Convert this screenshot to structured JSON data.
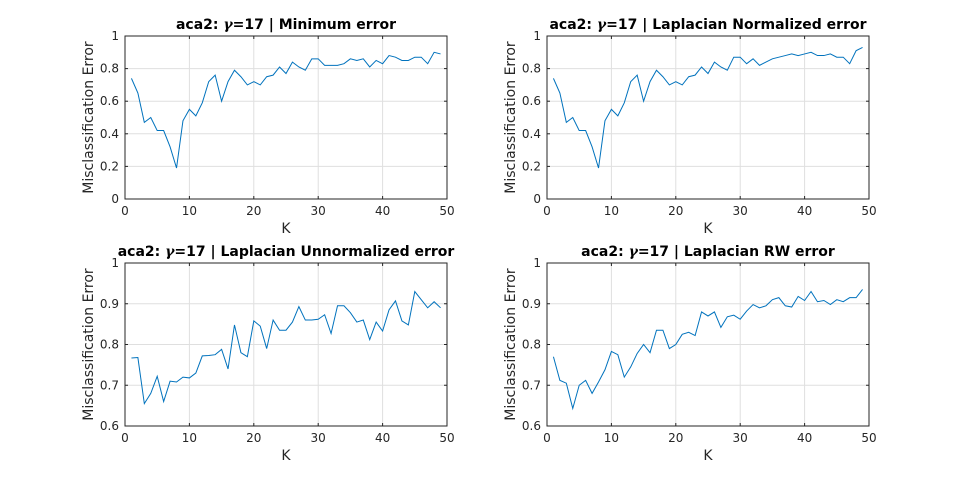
{
  "chart_data": [
    {
      "type": "line",
      "title_prefix": "aca2: ",
      "title_symbol": "γ",
      "title_suffix": "=17 | Minimum error",
      "xlabel": "K",
      "ylabel": "Misclassification Error",
      "xlim": [
        0,
        50
      ],
      "ylim": [
        0,
        1
      ],
      "xticks": [
        0,
        10,
        20,
        30,
        40,
        50
      ],
      "yticks": [
        0,
        0.2,
        0.4,
        0.6,
        0.8,
        1
      ],
      "ytick_labels": [
        "0",
        "0.2",
        "0.4",
        "0.6",
        "0.8",
        "1"
      ],
      "grid": true,
      "series": [
        {
          "color": "#0072bd",
          "x": [
            1,
            2,
            3,
            4,
            5,
            6,
            7,
            8,
            9,
            10,
            11,
            12,
            13,
            14,
            15,
            16,
            17,
            18,
            19,
            20,
            21,
            22,
            23,
            24,
            25,
            26,
            27,
            28,
            29,
            30,
            31,
            32,
            33,
            34,
            35,
            36,
            37,
            38,
            39,
            40,
            41,
            42,
            43,
            44,
            45,
            46,
            47,
            48,
            49
          ],
          "y": [
            0.74,
            0.65,
            0.47,
            0.5,
            0.42,
            0.42,
            0.32,
            0.19,
            0.48,
            0.55,
            0.51,
            0.59,
            0.72,
            0.76,
            0.6,
            0.72,
            0.79,
            0.75,
            0.7,
            0.72,
            0.7,
            0.75,
            0.76,
            0.81,
            0.77,
            0.84,
            0.81,
            0.79,
            0.86,
            0.86,
            0.82,
            0.82,
            0.82,
            0.83,
            0.86,
            0.85,
            0.86,
            0.81,
            0.85,
            0.83,
            0.88,
            0.87,
            0.85,
            0.85,
            0.87,
            0.87,
            0.83,
            0.9,
            0.89
          ]
        }
      ]
    },
    {
      "type": "line",
      "title_prefix": "aca2: ",
      "title_symbol": "γ",
      "title_suffix": "=17 | Laplacian Normalized error",
      "xlabel": "K",
      "ylabel": "Misclassification Error",
      "xlim": [
        0,
        50
      ],
      "ylim": [
        0,
        1
      ],
      "xticks": [
        0,
        10,
        20,
        30,
        40,
        50
      ],
      "yticks": [
        0,
        0.2,
        0.4,
        0.6,
        0.8,
        1
      ],
      "ytick_labels": [
        "0",
        "0.2",
        "0.4",
        "0.6",
        "0.8",
        "1"
      ],
      "grid": true,
      "series": [
        {
          "color": "#0072bd",
          "x": [
            1,
            2,
            3,
            4,
            5,
            6,
            7,
            8,
            9,
            10,
            11,
            12,
            13,
            14,
            15,
            16,
            17,
            18,
            19,
            20,
            21,
            22,
            23,
            24,
            25,
            26,
            27,
            28,
            29,
            30,
            31,
            32,
            33,
            34,
            35,
            36,
            37,
            38,
            39,
            40,
            41,
            42,
            43,
            44,
            45,
            46,
            47,
            48,
            49
          ],
          "y": [
            0.74,
            0.65,
            0.47,
            0.5,
            0.42,
            0.42,
            0.32,
            0.19,
            0.48,
            0.55,
            0.51,
            0.59,
            0.72,
            0.76,
            0.6,
            0.72,
            0.79,
            0.75,
            0.7,
            0.72,
            0.7,
            0.75,
            0.76,
            0.81,
            0.77,
            0.84,
            0.81,
            0.79,
            0.87,
            0.87,
            0.83,
            0.86,
            0.82,
            0.84,
            0.86,
            0.87,
            0.88,
            0.89,
            0.88,
            0.89,
            0.9,
            0.88,
            0.88,
            0.89,
            0.87,
            0.87,
            0.83,
            0.91,
            0.93
          ]
        }
      ]
    },
    {
      "type": "line",
      "title_prefix": "aca2: ",
      "title_symbol": "γ",
      "title_suffix": "=17 | Laplacian Unnormalized error",
      "xlabel": "K",
      "ylabel": "Misclassification Error",
      "xlim": [
        0,
        50
      ],
      "ylim": [
        0.6,
        1
      ],
      "xticks": [
        0,
        10,
        20,
        30,
        40,
        50
      ],
      "yticks": [
        0.6,
        0.7,
        0.8,
        0.9,
        1
      ],
      "ytick_labels": [
        "0.6",
        "0.7",
        "0.8",
        "0.9",
        "1"
      ],
      "grid": true,
      "series": [
        {
          "color": "#0072bd",
          "x": [
            1,
            2,
            3,
            4,
            5,
            6,
            7,
            8,
            9,
            10,
            11,
            12,
            13,
            14,
            15,
            16,
            17,
            18,
            19,
            20,
            21,
            22,
            23,
            24,
            25,
            26,
            27,
            28,
            29,
            30,
            31,
            32,
            33,
            34,
            35,
            36,
            37,
            38,
            39,
            40,
            41,
            42,
            43,
            44,
            45,
            46,
            47,
            48,
            49
          ],
          "y": [
            0.767,
            0.768,
            0.655,
            0.68,
            0.722,
            0.66,
            0.71,
            0.708,
            0.72,
            0.718,
            0.73,
            0.772,
            0.773,
            0.775,
            0.788,
            0.74,
            0.848,
            0.78,
            0.77,
            0.858,
            0.845,
            0.79,
            0.86,
            0.835,
            0.835,
            0.855,
            0.893,
            0.86,
            0.86,
            0.862,
            0.873,
            0.827,
            0.895,
            0.895,
            0.878,
            0.855,
            0.86,
            0.812,
            0.855,
            0.833,
            0.885,
            0.907,
            0.858,
            0.848,
            0.93,
            0.91,
            0.89,
            0.905,
            0.89
          ]
        }
      ]
    },
    {
      "type": "line",
      "title_prefix": "aca2: ",
      "title_symbol": "γ",
      "title_suffix": "=17 | Laplacian RW error",
      "xlabel": "K",
      "ylabel": "Misclassification Error",
      "xlim": [
        0,
        50
      ],
      "ylim": [
        0.6,
        1
      ],
      "xticks": [
        0,
        10,
        20,
        30,
        40,
        50
      ],
      "yticks": [
        0.6,
        0.7,
        0.8,
        0.9,
        1
      ],
      "ytick_labels": [
        "0.6",
        "0.7",
        "0.8",
        "0.9",
        "1"
      ],
      "grid": true,
      "series": [
        {
          "color": "#0072bd",
          "x": [
            1,
            2,
            3,
            4,
            5,
            6,
            7,
            8,
            9,
            10,
            11,
            12,
            13,
            14,
            15,
            16,
            17,
            18,
            19,
            20,
            21,
            22,
            23,
            24,
            25,
            26,
            27,
            28,
            29,
            30,
            31,
            32,
            33,
            34,
            35,
            36,
            37,
            38,
            39,
            40,
            41,
            42,
            43,
            44,
            45,
            46,
            47,
            48,
            49
          ],
          "y": [
            0.77,
            0.712,
            0.705,
            0.643,
            0.7,
            0.712,
            0.68,
            0.708,
            0.738,
            0.783,
            0.775,
            0.72,
            0.745,
            0.778,
            0.8,
            0.78,
            0.835,
            0.835,
            0.79,
            0.8,
            0.825,
            0.83,
            0.822,
            0.88,
            0.87,
            0.88,
            0.842,
            0.868,
            0.872,
            0.862,
            0.882,
            0.898,
            0.89,
            0.895,
            0.91,
            0.915,
            0.895,
            0.892,
            0.918,
            0.908,
            0.93,
            0.905,
            0.908,
            0.898,
            0.91,
            0.905,
            0.915,
            0.915,
            0.935
          ]
        }
      ]
    }
  ]
}
